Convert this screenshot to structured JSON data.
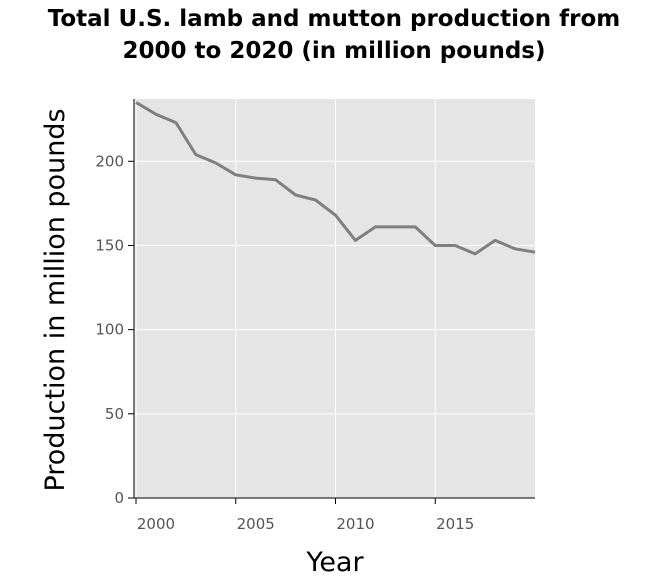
{
  "chart_data": {
    "type": "line",
    "title_lines": [
      "Total U.S. lamb and mutton production from",
      "2000 to 2020 (in million pounds)"
    ],
    "xlabel": "Year",
    "ylabel": "Production in million pounds",
    "xlim": [
      1999.9,
      2020
    ],
    "ylim": [
      0,
      237
    ],
    "xticks": [
      2000,
      2005,
      2010,
      2015
    ],
    "xtick_labels": [
      "2000",
      "2005",
      "2010",
      "2015"
    ],
    "yticks": [
      0,
      50,
      100,
      150,
      200
    ],
    "ytick_labels": [
      "0",
      "50",
      "100",
      "150",
      "200"
    ],
    "grid": true,
    "background_color": "#e5e5e5",
    "line_color": "#7f7f7f",
    "x": [
      2000,
      2001,
      2002,
      2003,
      2004,
      2005,
      2006,
      2007,
      2008,
      2009,
      2010,
      2011,
      2012,
      2013,
      2014,
      2015,
      2016,
      2017,
      2018,
      2019,
      2020
    ],
    "y": [
      235,
      228,
      223,
      204,
      199,
      192,
      190,
      189,
      180,
      177,
      168,
      153,
      161,
      161,
      161,
      150,
      150,
      145,
      153,
      148,
      146
    ]
  }
}
